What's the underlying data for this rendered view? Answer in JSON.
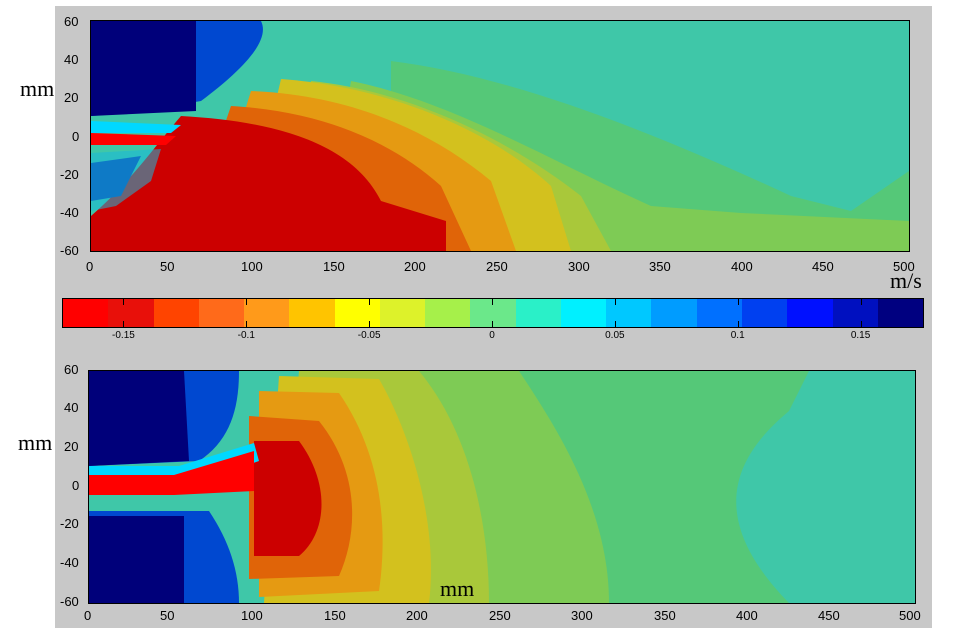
{
  "units": {
    "top_y": "mm",
    "bottom_y": "mm",
    "bottom_x": "mm",
    "colorbar": "m/s"
  },
  "colors": {
    "background_panel": "#c8c8c8",
    "colormap": [
      "#ff0000",
      "#e8100a",
      "#ff4400",
      "#ff6a1a",
      "#ff9a1a",
      "#ffc400",
      "#ffff00",
      "#ddf22a",
      "#a6f04a",
      "#6be88a",
      "#2af0c8",
      "#00f0ff",
      "#00c8ff",
      "#009cff",
      "#0070ff",
      "#0040f0",
      "#0010ff",
      "#0010c0",
      "#000080"
    ]
  },
  "chart_data": [
    {
      "type": "heatmap",
      "panel": "top",
      "ylabel": "mm",
      "xlim": [
        0,
        500
      ],
      "ylim": [
        -60,
        60
      ],
      "xticks": [
        "0",
        "50",
        "100",
        "150",
        "200",
        "250",
        "300",
        "350",
        "400",
        "450",
        "500"
      ],
      "yticks": [
        "60",
        "40",
        "20",
        "0",
        "-20",
        "-40",
        "-60"
      ],
      "grid": false,
      "regions_description": "negative core (red, about -0.17 m/s) from x=0 to about 220 mm in the lower half, surrounded by orange/yellow bands extending to about 290 mm; strong positive region (dark blue, about +0.17 m/s) in the upper left corner x=0-60 mm, y=20-60 mm; far field near 0 m/s (cyan-green)."
    },
    {
      "type": "heatmap",
      "panel": "bottom",
      "ylabel": "mm",
      "xlabel": "mm",
      "xlim": [
        0,
        500
      ],
      "ylim": [
        -60,
        60
      ],
      "xticks": [
        "0",
        "50",
        "100",
        "150",
        "200",
        "250",
        "300",
        "350",
        "400",
        "450",
        "500"
      ],
      "yticks": [
        "60",
        "40",
        "20",
        "0",
        "-20",
        "-40",
        "-60"
      ],
      "grid": false,
      "regions_description": "positive (dark blue) regions above and below a central jet for x=0-60 mm; negative core (red) centered near x=120-150 mm, y=0 mm, with a thin red jet along y=0 from x=0; orange/yellow rings out to about 220 mm; far field near 0 m/s."
    },
    {
      "type": "colorbar",
      "label": "m/s",
      "range": [
        -0.175,
        0.175
      ],
      "ticks": [
        -0.15,
        -0.1,
        -0.05,
        0,
        0.05,
        0.1,
        0.15
      ],
      "tick_labels": [
        "-0.15",
        "-0.1",
        "-0.05",
        "0",
        "0.05",
        "0.1",
        "0.15"
      ]
    }
  ]
}
